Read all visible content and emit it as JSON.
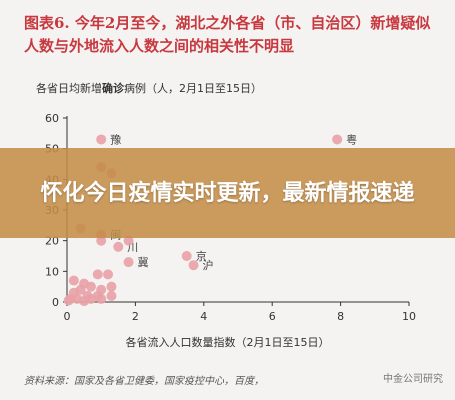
{
  "figure": {
    "title": "图表6. 今年2月至今，湖北之外各省（市、自治区）新增疑似人数与外地流入人数之间的相关性不明显",
    "subtitle_prefix": "各省日均新增",
    "subtitle_bold": "确诊",
    "subtitle_suffix": "病例（人，2月1日至15日）",
    "xlabel": "各省流入人口数量指数（2月1日至15日）",
    "source": "资料来源：国家及各省卫健委，国家疫控中心，百度，",
    "watermark": "中金公司研究"
  },
  "banner": {
    "headline": "怀化今日疫情实时更新，最新情报速递"
  },
  "colors": {
    "title": "#c8383f",
    "points": "#e8a1a6",
    "banner": "#c48c46",
    "axis": "#333333",
    "grid": "#d9d9d9"
  },
  "chart_data": {
    "type": "scatter",
    "xlabel": "各省流入人口数量指数（2月1日至15日）",
    "ylabel": "各省日均新增确诊病例（人，2月1日至15日）",
    "xlim": [
      0,
      10
    ],
    "ylim": [
      0,
      60
    ],
    "xticks": [
      "0",
      "2",
      "4",
      "6",
      "8",
      "10"
    ],
    "yticks": [
      "0",
      "10",
      "20",
      "30",
      "40",
      "50",
      "60"
    ],
    "grid": false,
    "series": [
      {
        "points": [
          {
            "x": 1.0,
            "y": 53,
            "label": "豫"
          },
          {
            "x": 7.9,
            "y": 53,
            "label": "粤"
          },
          {
            "x": 1.0,
            "y": 44,
            "label": ""
          },
          {
            "x": 1.3,
            "y": 42,
            "label": ""
          },
          {
            "x": 0.4,
            "y": 24,
            "label": ""
          },
          {
            "x": 1.0,
            "y": 22,
            "label": "闽"
          },
          {
            "x": 1.0,
            "y": 20,
            "label": ""
          },
          {
            "x": 1.5,
            "y": 18,
            "label": "川"
          },
          {
            "x": 1.8,
            "y": 20,
            "label": ""
          },
          {
            "x": 1.8,
            "y": 13,
            "label": "冀"
          },
          {
            "x": 3.5,
            "y": 15,
            "label": "京"
          },
          {
            "x": 3.7,
            "y": 12,
            "label": "沪"
          },
          {
            "x": 0.9,
            "y": 9,
            "label": ""
          },
          {
            "x": 1.2,
            "y": 9,
            "label": ""
          },
          {
            "x": 0.2,
            "y": 7,
            "label": ""
          },
          {
            "x": 0.5,
            "y": 6,
            "label": ""
          },
          {
            "x": 0.4,
            "y": 4,
            "label": ""
          },
          {
            "x": 0.7,
            "y": 5,
            "label": ""
          },
          {
            "x": 1.0,
            "y": 4,
            "label": ""
          },
          {
            "x": 1.3,
            "y": 5,
            "label": ""
          },
          {
            "x": 0.2,
            "y": 3,
            "label": ""
          },
          {
            "x": 0.6,
            "y": 2,
            "label": ""
          },
          {
            "x": 0.9,
            "y": 2,
            "label": ""
          },
          {
            "x": 1.3,
            "y": 2,
            "label": ""
          },
          {
            "x": 0.1,
            "y": 1,
            "label": ""
          },
          {
            "x": 0.3,
            "y": 1,
            "label": ""
          },
          {
            "x": 0.7,
            "y": 1,
            "label": ""
          },
          {
            "x": 1.0,
            "y": 1,
            "label": ""
          },
          {
            "x": 0.05,
            "y": 0.5,
            "label": ""
          },
          {
            "x": 0.5,
            "y": 0.3,
            "label": ""
          }
        ]
      }
    ]
  }
}
